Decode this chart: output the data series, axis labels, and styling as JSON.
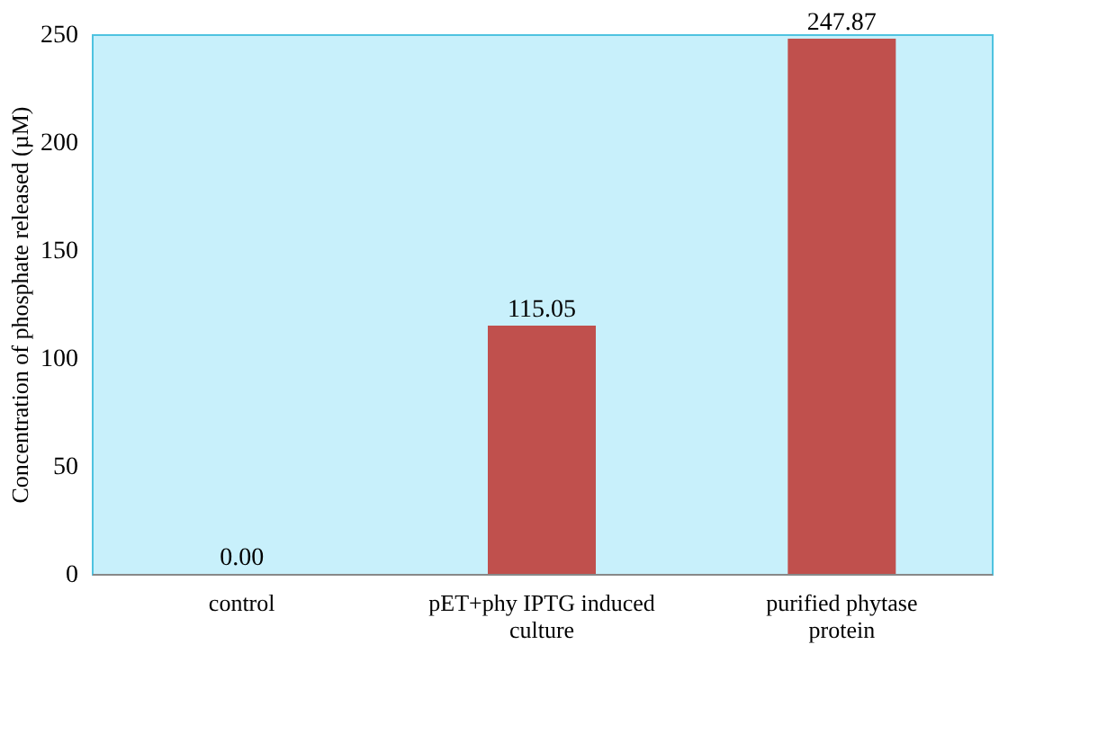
{
  "chart_data": {
    "type": "bar",
    "ylabel": "Concentration of phosphate released  (µM)",
    "categories": [
      "control",
      "pET+phy IPTG induced culture",
      "purified phytase protein"
    ],
    "values": [
      0,
      115.05,
      247.87
    ],
    "value_labels": [
      "0.00",
      "115.05",
      "247.87"
    ],
    "color": "#c0504d",
    "ylim": [
      0,
      250
    ],
    "yticks": [
      0,
      50,
      100,
      150,
      200,
      250
    ],
    "grid": false
  }
}
